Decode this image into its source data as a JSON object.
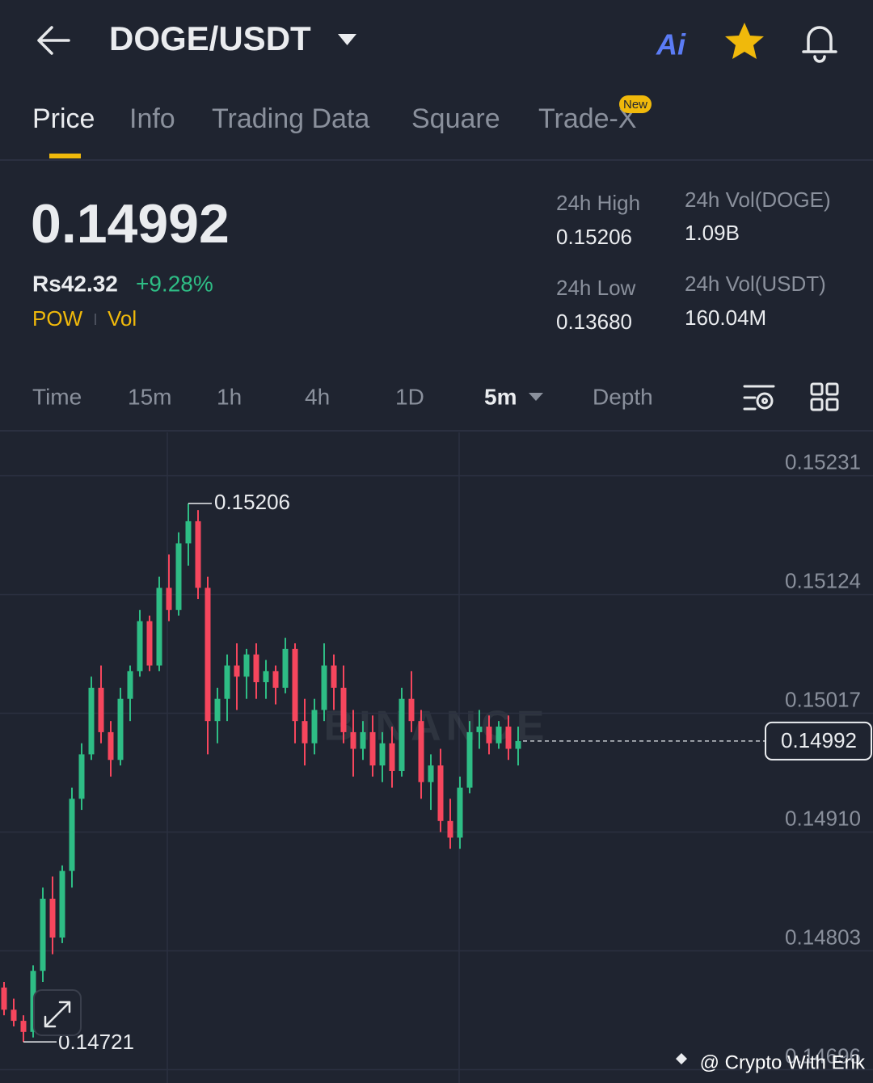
{
  "header": {
    "pair": "DOGE/USDT",
    "ai_label": "Ai"
  },
  "tabs": [
    "Price",
    "Info",
    "Trading Data",
    "Square",
    "Trade-X"
  ],
  "tab_badge": "New",
  "price": {
    "last": "0.14992",
    "fiat": "Rs42.32",
    "change": "+9.28%",
    "tag1": "POW",
    "tag2": "Vol"
  },
  "stats": {
    "high_label": "24h High",
    "high": "0.15206",
    "low_label": "24h Low",
    "low": "0.13680",
    "vol_base_label": "24h Vol(DOGE)",
    "vol_base": "1.09B",
    "vol_quote_label": "24h Vol(USDT)",
    "vol_quote": "160.04M"
  },
  "intervals": [
    "Time",
    "15m",
    "1h",
    "4h",
    "1D",
    "5m",
    "Depth"
  ],
  "footer": "@ Crypto With Erik",
  "chart_data": {
    "type": "candlestick",
    "watermark": "BINANCE",
    "up_color": "#2ebd85",
    "down_color": "#f6465d",
    "ylim": [
      0.14684,
      0.1527
    ],
    "yticks": [
      0.15231,
      0.15124,
      0.15017,
      {
        "value": 0.1491,
        "label": "0.14910"
      },
      0.14803,
      0.14696
    ],
    "last_price": 0.14992,
    "high_mark": 0.15206,
    "low_mark": 0.14721,
    "open": [
      0.1477,
      0.1475,
      0.1474,
      0.1473,
      0.14785,
      0.1485,
      0.14815,
      0.14875,
      0.1494,
      0.1498,
      0.1504,
      0.15,
      0.14975,
      0.1503,
      0.15055,
      0.151,
      0.1506,
      0.1513,
      0.1511,
      0.1517,
      0.1519,
      0.1513,
      0.1501,
      0.1503,
      0.1506,
      0.1505,
      0.1507,
      0.15045,
      0.15055,
      0.1504,
      0.15075,
      0.1501,
      0.1499,
      0.1502,
      0.1506,
      0.1504,
      0.15,
      0.14985,
      0.15,
      0.1497,
      0.1499,
      0.14965,
      0.1503,
      0.1501,
      0.14955,
      0.1497,
      0.1492,
      0.14905,
      0.1495,
      0.15,
      0.15005,
      0.1499,
      0.15005,
      0.14985
    ],
    "high": [
      0.14775,
      0.1476,
      0.14745,
      0.1479,
      0.1486,
      0.1487,
      0.1488,
      0.1495,
      0.1499,
      0.1505,
      0.1506,
      0.1501,
      0.1504,
      0.1506,
      0.1511,
      0.15105,
      0.1514,
      0.1516,
      0.1518,
      0.15206,
      0.152,
      0.1514,
      0.1504,
      0.1507,
      0.1508,
      0.15075,
      0.1508,
      0.15065,
      0.1506,
      0.15085,
      0.1508,
      0.1503,
      0.1503,
      0.1508,
      0.1507,
      0.1506,
      0.1502,
      0.1501,
      0.15015,
      0.15,
      0.15005,
      0.1504,
      0.15055,
      0.1502,
      0.1498,
      0.14985,
      0.1494,
      0.1496,
      0.1501,
      0.1502,
      0.15015,
      0.1501,
      0.15015,
      0.15005
    ],
    "low": [
      0.14745,
      0.14735,
      0.14721,
      0.14725,
      0.14775,
      0.148,
      0.1481,
      0.1486,
      0.1493,
      0.14975,
      0.1499,
      0.1496,
      0.1497,
      0.1501,
      0.1505,
      0.15055,
      0.15055,
      0.151,
      0.15105,
      0.1515,
      0.1512,
      0.1498,
      0.1499,
      0.1501,
      0.1502,
      0.1503,
      0.1503,
      0.1503,
      0.15025,
      0.15035,
      0.1499,
      0.1497,
      0.1498,
      0.1501,
      0.1502,
      0.1499,
      0.1496,
      0.14975,
      0.1496,
      0.14955,
      0.1495,
      0.1496,
      0.15,
      0.1494,
      0.1493,
      0.1491,
      0.14895,
      0.14895,
      0.14945,
      0.14985,
      0.1498,
      0.14985,
      0.14975,
      0.1497
    ],
    "close": [
      0.1475,
      0.1474,
      0.1473,
      0.14785,
      0.1485,
      0.14815,
      0.14875,
      0.1494,
      0.1498,
      0.1504,
      0.15,
      0.14975,
      0.1503,
      0.15055,
      0.151,
      0.1506,
      0.1513,
      0.1511,
      0.1517,
      0.1519,
      0.1513,
      0.1501,
      0.1503,
      0.1506,
      0.1505,
      0.1507,
      0.15045,
      0.15055,
      0.1504,
      0.15075,
      0.1501,
      0.1499,
      0.1502,
      0.1506,
      0.1504,
      0.15,
      0.14985,
      0.15,
      0.1497,
      0.1499,
      0.14965,
      0.1503,
      0.1501,
      0.14955,
      0.1497,
      0.1492,
      0.14905,
      0.1495,
      0.15,
      0.15005,
      0.1499,
      0.15005,
      0.14985,
      0.14992
    ]
  }
}
